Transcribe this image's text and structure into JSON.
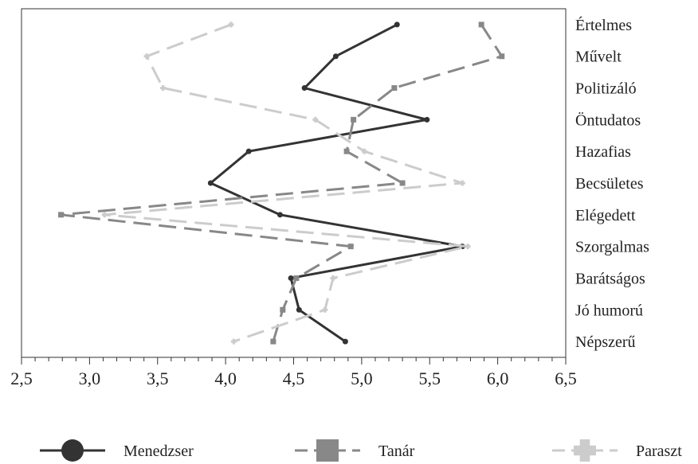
{
  "chart_data": {
    "type": "line",
    "orientation": "horizontal",
    "categories": [
      "Értelmes",
      "Művelt",
      "Politizáló",
      "Öntudatos",
      "Hazafias",
      "Becsületes",
      "Elégedett",
      "Szorgalmas",
      "Barátságos",
      "Jó humorú",
      "Népszerű"
    ],
    "xlim": [
      2.5,
      6.5
    ],
    "xticks": [
      "2,5",
      "3,0",
      "3,5",
      "4,0",
      "4,5",
      "5,0",
      "5,5",
      "6,0",
      "6,5"
    ],
    "xtick_values": [
      2.5,
      3.0,
      3.5,
      4.0,
      4.5,
      5.0,
      5.5,
      6.0,
      6.5
    ],
    "grid": false,
    "legend_position": "bottom",
    "series": [
      {
        "name": "Menedzser",
        "values": [
          5.26,
          4.81,
          4.58,
          5.48,
          4.17,
          3.89,
          4.4,
          5.74,
          4.48,
          4.54,
          4.88
        ],
        "color": "#333333",
        "style": "solid",
        "marker": "circle"
      },
      {
        "name": "Tanár",
        "values": [
          5.88,
          6.03,
          5.24,
          4.94,
          4.89,
          5.3,
          2.79,
          4.92,
          4.52,
          4.42,
          4.35
        ],
        "color": "#888888",
        "style": "dashed",
        "marker": "square"
      },
      {
        "name": "Paraszt",
        "values": [
          4.04,
          3.42,
          3.54,
          4.66,
          5.02,
          5.74,
          3.11,
          5.78,
          4.79,
          4.73,
          4.06
        ],
        "color": "#cccccc",
        "style": "dashed",
        "marker": "plus"
      }
    ]
  }
}
